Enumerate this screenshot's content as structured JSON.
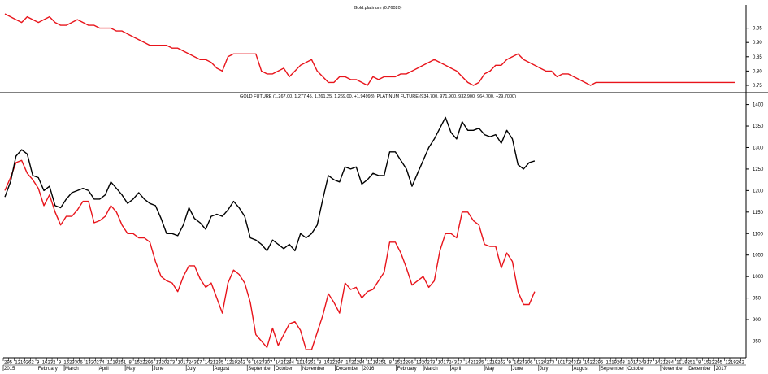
{
  "colors": {
    "gold": "#000000",
    "platinum": "#e8141b",
    "ratio": "#e8141b",
    "axis": "#000000"
  },
  "chart_data": [
    {
      "type": "line",
      "title": "Gold:platinum (0.76020)",
      "y_ticks": [
        0.75,
        0.8,
        0.85,
        0.9,
        0.95
      ],
      "ylim": [
        0.73,
        1.02
      ],
      "x_count": 132,
      "series": [
        {
          "values": [
            1.0,
            0.99,
            0.98,
            0.97,
            0.99,
            0.98,
            0.97,
            0.98,
            0.99,
            0.97,
            0.96,
            0.96,
            0.97,
            0.98,
            0.97,
            0.96,
            0.96,
            0.95,
            0.95,
            0.95,
            0.94,
            0.94,
            0.93,
            0.92,
            0.91,
            0.9,
            0.89,
            0.89,
            0.89,
            0.89,
            0.88,
            0.88,
            0.87,
            0.86,
            0.85,
            0.84,
            0.84,
            0.83,
            0.81,
            0.8,
            0.85,
            0.86,
            0.86,
            0.86,
            0.86,
            0.86,
            0.8,
            0.79,
            0.79,
            0.8,
            0.81,
            0.78,
            0.8,
            0.82,
            0.83,
            0.84,
            0.8,
            0.78,
            0.76,
            0.76,
            0.78,
            0.78,
            0.77,
            0.77,
            0.76,
            0.75,
            0.78,
            0.77,
            0.78,
            0.78,
            0.78,
            0.79,
            0.79,
            0.8,
            0.81,
            0.82,
            0.83,
            0.84,
            0.83,
            0.82,
            0.81,
            0.8,
            0.78,
            0.76,
            0.75,
            0.76,
            0.79,
            0.8,
            0.82,
            0.82,
            0.84,
            0.85,
            0.86,
            0.84,
            0.83,
            0.82,
            0.81,
            0.8,
            0.8,
            0.78,
            0.79,
            0.79,
            0.78,
            0.77,
            0.76,
            0.75,
            0.76,
            0.76,
            0.76,
            0.76,
            0.76,
            0.76,
            0.76,
            0.76,
            0.76,
            0.76,
            0.76,
            0.76,
            0.76,
            0.76,
            0.76,
            0.76,
            0.76,
            0.76,
            0.76,
            0.76,
            0.76,
            0.76,
            0.76,
            0.76,
            0.76,
            0.76
          ]
        }
      ]
    },
    {
      "type": "line",
      "title": "GOLD FUTURE (1,267.00, 1,277.45, 1,261.25, 1,269.00, +1.94998), PLATINUM FUTURE (934.700, 971.900, 932.900, 964.700, +29.7000)",
      "y_ticks": [
        850,
        900,
        950,
        1000,
        1050,
        1100,
        1150,
        1200,
        1250,
        1300,
        1350,
        1400
      ],
      "ylim": [
        815,
        1420
      ],
      "series": [
        {
          "values": [
            1185,
            1220,
            1280,
            1295,
            1285,
            1235,
            1230,
            1200,
            1210,
            1165,
            1160,
            1180,
            1195,
            1200,
            1205,
            1200,
            1180,
            1180,
            1190,
            1220,
            1205,
            1190,
            1170,
            1180,
            1195,
            1180,
            1170,
            1165,
            1135,
            1100,
            1100,
            1095,
            1120,
            1160,
            1135,
            1125,
            1110,
            1140,
            1145,
            1140,
            1155,
            1175,
            1160,
            1140,
            1090,
            1085,
            1075,
            1060,
            1085,
            1075,
            1065,
            1075,
            1060,
            1100,
            1090,
            1100,
            1120,
            1180,
            1235,
            1225,
            1220,
            1255,
            1250,
            1255,
            1215,
            1225,
            1240,
            1235,
            1235,
            1290,
            1290,
            1270,
            1250,
            1210,
            1240,
            1270,
            1300,
            1320,
            1345,
            1370,
            1335,
            1320,
            1360,
            1340,
            1340,
            1345,
            1330,
            1325,
            1330,
            1310,
            1340,
            1320,
            1260,
            1250,
            1265,
            1269
          ]
        },
        {
          "values": [
            1200,
            1230,
            1265,
            1270,
            1240,
            1225,
            1205,
            1165,
            1190,
            1150,
            1120,
            1140,
            1140,
            1155,
            1175,
            1175,
            1125,
            1130,
            1140,
            1165,
            1150,
            1120,
            1100,
            1100,
            1090,
            1090,
            1080,
            1035,
            1000,
            990,
            985,
            965,
            1000,
            1025,
            1025,
            995,
            975,
            985,
            950,
            915,
            985,
            1015,
            1005,
            985,
            940,
            865,
            850,
            835,
            880,
            840,
            865,
            890,
            895,
            875,
            830,
            830,
            870,
            910,
            960,
            940,
            915,
            985,
            970,
            975,
            950,
            965,
            970,
            990,
            1010,
            1080,
            1080,
            1055,
            1020,
            980,
            990,
            1000,
            975,
            990,
            1060,
            1100,
            1100,
            1090,
            1150,
            1150,
            1130,
            1120,
            1075,
            1070,
            1070,
            1020,
            1055,
            1035,
            965,
            935,
            935,
            965
          ]
        }
      ]
    }
  ],
  "x_axis": {
    "day_ticks": [
      "29",
      "5",
      "12",
      "19",
      "26",
      "2",
      "9",
      "16",
      "23",
      "2",
      "9",
      "16",
      "23",
      "30",
      "6",
      "13",
      "20",
      "27",
      "4",
      "11",
      "18",
      "25",
      "1",
      "8",
      "15",
      "22",
      "29",
      "6",
      "13",
      "20",
      "27",
      "3",
      "10",
      "17",
      "24",
      "31",
      "7",
      "14",
      "21",
      "28",
      "5",
      "12",
      "19",
      "26",
      "2",
      "9",
      "16",
      "23",
      "30",
      "7",
      "14",
      "21",
      "28",
      "4",
      "11",
      "18",
      "25",
      "1",
      "8",
      "15",
      "22",
      "29",
      "7",
      "14",
      "21",
      "28",
      "4",
      "11",
      "18",
      "25",
      "1",
      "8",
      "15",
      "22",
      "29",
      "6",
      "13",
      "20",
      "27",
      "3",
      "10",
      "17",
      "24",
      "31",
      "7",
      "14",
      "21",
      "28",
      "5",
      "12",
      "19",
      "26",
      "2",
      "9",
      "16",
      "23",
      "30",
      "6",
      "13",
      "20",
      "27",
      "3",
      "10",
      "17",
      "24",
      "31",
      "8",
      "15",
      "22",
      "29",
      "5",
      "12",
      "19",
      "26",
      "3",
      "10",
      "17",
      "24",
      "31",
      "7",
      "14",
      "21",
      "28",
      "4",
      "11",
      "18",
      "25",
      "1",
      "8",
      "15",
      "22",
      "29",
      "5",
      "12",
      "19",
      "26",
      "2"
    ],
    "months": [
      {
        "label": "2015",
        "i": 0
      },
      {
        "label": "February",
        "i": 5
      },
      {
        "label": "March",
        "i": 9
      },
      {
        "label": "April",
        "i": 14
      },
      {
        "label": "May",
        "i": 18
      },
      {
        "label": "June",
        "i": 22
      },
      {
        "label": "July",
        "i": 27
      },
      {
        "label": "August",
        "i": 31
      },
      {
        "label": "September",
        "i": 36
      },
      {
        "label": "October",
        "i": 40
      },
      {
        "label": "November",
        "i": 44
      },
      {
        "label": "December",
        "i": 49
      },
      {
        "label": "2016",
        "i": 53
      },
      {
        "label": "February",
        "i": 58
      },
      {
        "label": "March",
        "i": 62
      },
      {
        "label": "April",
        "i": 66
      },
      {
        "label": "May",
        "i": 71
      },
      {
        "label": "June",
        "i": 75
      },
      {
        "label": "July",
        "i": 79
      },
      {
        "label": "August",
        "i": 84
      },
      {
        "label": "September",
        "i": 88
      },
      {
        "label": "October",
        "i": 92
      },
      {
        "label": "November",
        "i": 97
      },
      {
        "label": "December",
        "i": 101
      },
      {
        "label": "2017",
        "i": 105
      }
    ]
  }
}
